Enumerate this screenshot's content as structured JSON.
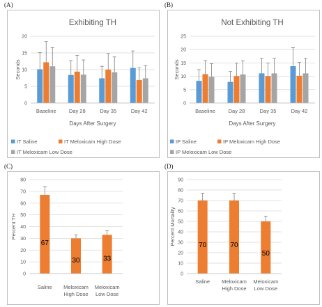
{
  "panels": {
    "a": {
      "letter": "(A)"
    },
    "b": {
      "letter": "(B)"
    },
    "c": {
      "letter": "(C)"
    },
    "d": {
      "letter": "(D)"
    }
  },
  "colors": {
    "blue": "#5b9bd5",
    "orange": "#ed7d31",
    "gray": "#a5a5a5",
    "error": "#808080",
    "grid": "#d9d9d9",
    "text": "#595959"
  },
  "chart_data": [
    {
      "id": "a",
      "type": "bar",
      "title": "Exhibiting TH",
      "xlabel": "Days After Surgery",
      "ylabel": "Seconds",
      "ylim": [
        0,
        20
      ],
      "yticks": [
        0,
        5,
        10,
        15,
        20
      ],
      "categories": [
        "Baseline",
        "Day 28",
        "Day 35",
        "Day 42"
      ],
      "series": [
        {
          "name": "IT Saline",
          "color": "#5b9bd5",
          "values": [
            10.1,
            8.4,
            7.4,
            10.5
          ],
          "errors": [
            5.0,
            4.3,
            3.6,
            5.1
          ]
        },
        {
          "name": "IT Meloxicam High Dose",
          "color": "#ed7d31",
          "values": [
            12.2,
            9.4,
            10.0,
            6.9
          ],
          "errors": [
            6.2,
            4.9,
            4.8,
            3.6
          ]
        },
        {
          "name": "IT Meloxicam Low Dose",
          "color": "#a5a5a5",
          "values": [
            11.0,
            8.5,
            9.2,
            7.4
          ],
          "errors": [
            5.6,
            4.4,
            4.6,
            3.8
          ]
        }
      ],
      "legend": "bottom"
    },
    {
      "id": "b",
      "type": "bar",
      "title": "Not Exhibiting TH",
      "xlabel": "Days After Surgery",
      "ylabel": "Seconds",
      "ylim": [
        0,
        25
      ],
      "yticks": [
        0,
        5,
        10,
        15,
        20,
        25
      ],
      "categories": [
        "Baseline",
        "Day 28",
        "Day 35",
        "Day 42"
      ],
      "series": [
        {
          "name": "IP Saline",
          "color": "#5b9bd5",
          "values": [
            8.3,
            7.9,
            11.1,
            13.8
          ],
          "errors": [
            4.2,
            3.9,
            5.6,
            6.9
          ]
        },
        {
          "name": "IP Meloxicam High Dose",
          "color": "#ed7d31",
          "values": [
            10.8,
            10.1,
            10.1,
            10.2
          ],
          "errors": [
            5.1,
            4.8,
            4.9,
            5.0
          ]
        },
        {
          "name": "IP Meloxicam Low Dose",
          "color": "#a5a5a5",
          "values": [
            9.8,
            10.7,
            11.1,
            11.1
          ],
          "errors": [
            4.9,
            5.1,
            5.6,
            5.6
          ]
        }
      ],
      "legend": "bottom"
    },
    {
      "id": "c",
      "type": "bar",
      "title": "",
      "xlabel": "",
      "ylabel": "Percent TH",
      "ylim": [
        0,
        80
      ],
      "yticks": [
        0,
        10,
        20,
        30,
        40,
        50,
        60,
        70,
        80
      ],
      "categories": [
        [
          "Saline"
        ],
        [
          "Meloxicam",
          "High Dose"
        ],
        [
          "Meloxicam",
          "Low Dose"
        ]
      ],
      "series": [
        {
          "name": "",
          "color": "#ed7d31",
          "values": [
            67,
            30,
            33
          ],
          "errors": [
            7,
            3,
            3.5
          ],
          "labels": [
            "67",
            "30",
            "33"
          ]
        }
      ]
    },
    {
      "id": "d",
      "type": "bar",
      "title": "",
      "xlabel": "",
      "ylabel": "Percent Mortality",
      "ylim": [
        0,
        90
      ],
      "yticks": [
        0,
        10,
        20,
        30,
        40,
        50,
        60,
        70,
        80,
        90
      ],
      "categories": [
        [
          "Saline"
        ],
        [
          "Meloxicam",
          "High Dose"
        ],
        [
          "Meloxicam",
          "Low Dose"
        ]
      ],
      "series": [
        {
          "name": "",
          "color": "#ed7d31",
          "values": [
            70,
            70,
            50
          ],
          "errors": [
            7,
            7,
            5
          ],
          "labels": [
            "70",
            "70",
            "50"
          ]
        }
      ]
    }
  ]
}
